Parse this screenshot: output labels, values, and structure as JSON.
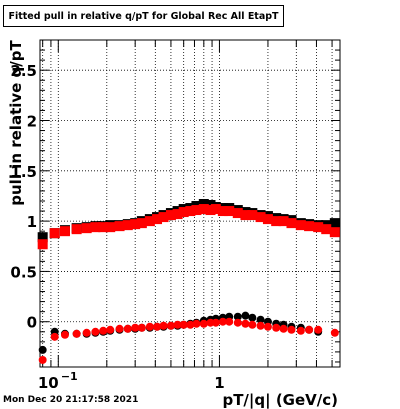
{
  "chart_data": {
    "type": "scatter",
    "title": "Fitted pull in relative q/pT for Global Rec All EtapT",
    "xlabel": "pT/|q| (GeV/c)",
    "ylabel": "pull in relative q/pT",
    "xscale": "log",
    "xlim": [
      0.077,
      5.6
    ],
    "ylim": [
      -0.45,
      2.8
    ],
    "grid": true,
    "x_tick_labels": [
      {
        "value": 0.1,
        "base": "10",
        "exp": "−1"
      },
      {
        "value": 1,
        "base": "1",
        "exp": ""
      }
    ],
    "y_ticks": [
      0,
      0.5,
      1,
      1.5,
      2,
      2.5
    ],
    "y_tick_labels": [
      "0",
      "0.5",
      "1",
      "1.5",
      "2",
      "2.5"
    ],
    "series": [
      {
        "color": "#000000",
        "marker": "square",
        "points": [
          [
            0.08,
            0.84
          ],
          [
            0.095,
            0.88
          ],
          [
            0.11,
            0.91
          ],
          [
            0.13,
            0.93
          ],
          [
            0.15,
            0.94
          ],
          [
            0.17,
            0.95
          ],
          [
            0.19,
            0.95
          ],
          [
            0.21,
            0.96
          ],
          [
            0.24,
            0.96
          ],
          [
            0.27,
            0.97
          ],
          [
            0.3,
            0.98
          ],
          [
            0.33,
            1.0
          ],
          [
            0.37,
            1.02
          ],
          [
            0.41,
            1.04
          ],
          [
            0.45,
            1.06
          ],
          [
            0.5,
            1.08
          ],
          [
            0.55,
            1.1
          ],
          [
            0.6,
            1.12
          ],
          [
            0.66,
            1.13
          ],
          [
            0.72,
            1.15
          ],
          [
            0.8,
            1.17
          ],
          [
            0.88,
            1.16
          ],
          [
            0.95,
            1.14
          ],
          [
            1.05,
            1.13
          ],
          [
            1.15,
            1.13
          ],
          [
            1.3,
            1.11
          ],
          [
            1.45,
            1.09
          ],
          [
            1.6,
            1.08
          ],
          [
            1.8,
            1.06
          ],
          [
            2.0,
            1.05
          ],
          [
            2.25,
            1.03
          ],
          [
            2.5,
            1.02
          ],
          [
            2.8,
            1.01
          ],
          [
            3.2,
            0.98
          ],
          [
            3.6,
            0.97
          ],
          [
            4.1,
            0.96
          ],
          [
            4.6,
            0.96
          ],
          [
            5.2,
            0.98
          ]
        ]
      },
      {
        "color": "#ff0000",
        "marker": "square",
        "points": [
          [
            0.08,
            0.77
          ],
          [
            0.095,
            0.88
          ],
          [
            0.11,
            0.9
          ],
          [
            0.13,
            0.92
          ],
          [
            0.15,
            0.93
          ],
          [
            0.17,
            0.94
          ],
          [
            0.19,
            0.94
          ],
          [
            0.21,
            0.94
          ],
          [
            0.24,
            0.95
          ],
          [
            0.27,
            0.96
          ],
          [
            0.3,
            0.97
          ],
          [
            0.33,
            0.98
          ],
          [
            0.37,
            1.0
          ],
          [
            0.41,
            1.02
          ],
          [
            0.45,
            1.04
          ],
          [
            0.5,
            1.06
          ],
          [
            0.55,
            1.07
          ],
          [
            0.6,
            1.09
          ],
          [
            0.66,
            1.1
          ],
          [
            0.72,
            1.11
          ],
          [
            0.8,
            1.12
          ],
          [
            0.88,
            1.11
          ],
          [
            0.95,
            1.12
          ],
          [
            1.05,
            1.1
          ],
          [
            1.15,
            1.1
          ],
          [
            1.3,
            1.08
          ],
          [
            1.45,
            1.06
          ],
          [
            1.6,
            1.06
          ],
          [
            1.8,
            1.04
          ],
          [
            2.0,
            1.02
          ],
          [
            2.25,
            1.0
          ],
          [
            2.5,
            1.0
          ],
          [
            2.8,
            0.98
          ],
          [
            3.2,
            0.96
          ],
          [
            3.6,
            0.95
          ],
          [
            4.1,
            0.94
          ],
          [
            4.6,
            0.92
          ],
          [
            5.2,
            0.89
          ]
        ]
      },
      {
        "color": "#000000",
        "marker": "circle",
        "points": [
          [
            0.08,
            -0.28
          ],
          [
            0.095,
            -0.1
          ],
          [
            0.11,
            -0.12
          ],
          [
            0.13,
            -0.12
          ],
          [
            0.15,
            -0.12
          ],
          [
            0.17,
            -0.11
          ],
          [
            0.19,
            -0.1
          ],
          [
            0.21,
            -0.09
          ],
          [
            0.24,
            -0.08
          ],
          [
            0.27,
            -0.07
          ],
          [
            0.3,
            -0.07
          ],
          [
            0.33,
            -0.06
          ],
          [
            0.37,
            -0.06
          ],
          [
            0.41,
            -0.05
          ],
          [
            0.45,
            -0.05
          ],
          [
            0.5,
            -0.04
          ],
          [
            0.55,
            -0.04
          ],
          [
            0.6,
            -0.03
          ],
          [
            0.66,
            -0.02
          ],
          [
            0.72,
            -0.01
          ],
          [
            0.8,
            0.01
          ],
          [
            0.88,
            0.02
          ],
          [
            0.95,
            0.03
          ],
          [
            1.05,
            0.04
          ],
          [
            1.15,
            0.05
          ],
          [
            1.3,
            0.05
          ],
          [
            1.45,
            0.06
          ],
          [
            1.6,
            0.04
          ],
          [
            1.8,
            0.02
          ],
          [
            2.0,
            0.0
          ],
          [
            2.25,
            -0.02
          ],
          [
            2.5,
            -0.03
          ],
          [
            2.8,
            -0.05
          ],
          [
            3.2,
            -0.06
          ],
          [
            3.6,
            -0.08
          ],
          [
            4.1,
            -0.1
          ]
        ]
      },
      {
        "color": "#ff0000",
        "marker": "circle",
        "points": [
          [
            0.08,
            -0.38
          ],
          [
            0.095,
            -0.15
          ],
          [
            0.11,
            -0.13
          ],
          [
            0.13,
            -0.12
          ],
          [
            0.15,
            -0.11
          ],
          [
            0.17,
            -0.1
          ],
          [
            0.19,
            -0.09
          ],
          [
            0.21,
            -0.08
          ],
          [
            0.24,
            -0.07
          ],
          [
            0.27,
            -0.07
          ],
          [
            0.3,
            -0.06
          ],
          [
            0.33,
            -0.06
          ],
          [
            0.37,
            -0.05
          ],
          [
            0.41,
            -0.05
          ],
          [
            0.45,
            -0.04
          ],
          [
            0.5,
            -0.04
          ],
          [
            0.55,
            -0.03
          ],
          [
            0.6,
            -0.03
          ],
          [
            0.66,
            -0.03
          ],
          [
            0.72,
            -0.02
          ],
          [
            0.8,
            -0.02
          ],
          [
            0.88,
            -0.01
          ],
          [
            0.95,
            -0.01
          ],
          [
            1.05,
            0.0
          ],
          [
            1.15,
            0.0
          ],
          [
            1.3,
            -0.01
          ],
          [
            1.45,
            -0.02
          ],
          [
            1.6,
            -0.03
          ],
          [
            1.8,
            -0.04
          ],
          [
            2.0,
            -0.05
          ],
          [
            2.25,
            -0.06
          ],
          [
            2.5,
            -0.07
          ],
          [
            2.8,
            -0.08
          ],
          [
            3.2,
            -0.09
          ],
          [
            3.6,
            -0.08
          ],
          [
            4.1,
            -0.08
          ],
          [
            5.2,
            -0.11
          ]
        ]
      }
    ]
  },
  "footer": {
    "timestamp": "Mon Dec 20 21:17:58 2021"
  }
}
